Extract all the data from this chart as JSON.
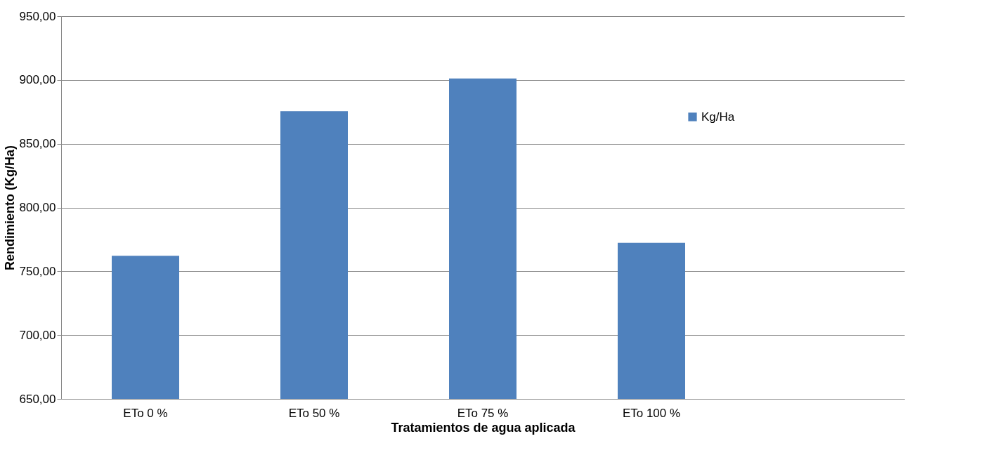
{
  "chart_data": {
    "type": "bar",
    "xlabel": "Tratamientos de agua aplicada",
    "ylabel": "Rendimiento (Kg/Ha)",
    "categories": [
      "ETo 0 %",
      "ETo 50 %",
      "ETo 75 %",
      "ETo 100 %",
      null
    ],
    "series": [
      {
        "name": "Kg/Ha",
        "color": "#4f81bd",
        "values": [
          762.2,
          875.5,
          901.1,
          772.3,
          null
        ]
      }
    ],
    "ylim": [
      650,
      950
    ],
    "yticks": [
      {
        "value": 650,
        "label": "650,00"
      },
      {
        "value": 700,
        "label": "700,00"
      },
      {
        "value": 750,
        "label": "750,00"
      },
      {
        "value": 800,
        "label": "800,00"
      },
      {
        "value": 850,
        "label": "850,00"
      },
      {
        "value": 900,
        "label": "900,00"
      },
      {
        "value": 950,
        "label": "950,00"
      }
    ],
    "grid": "y",
    "legend": "top right"
  }
}
